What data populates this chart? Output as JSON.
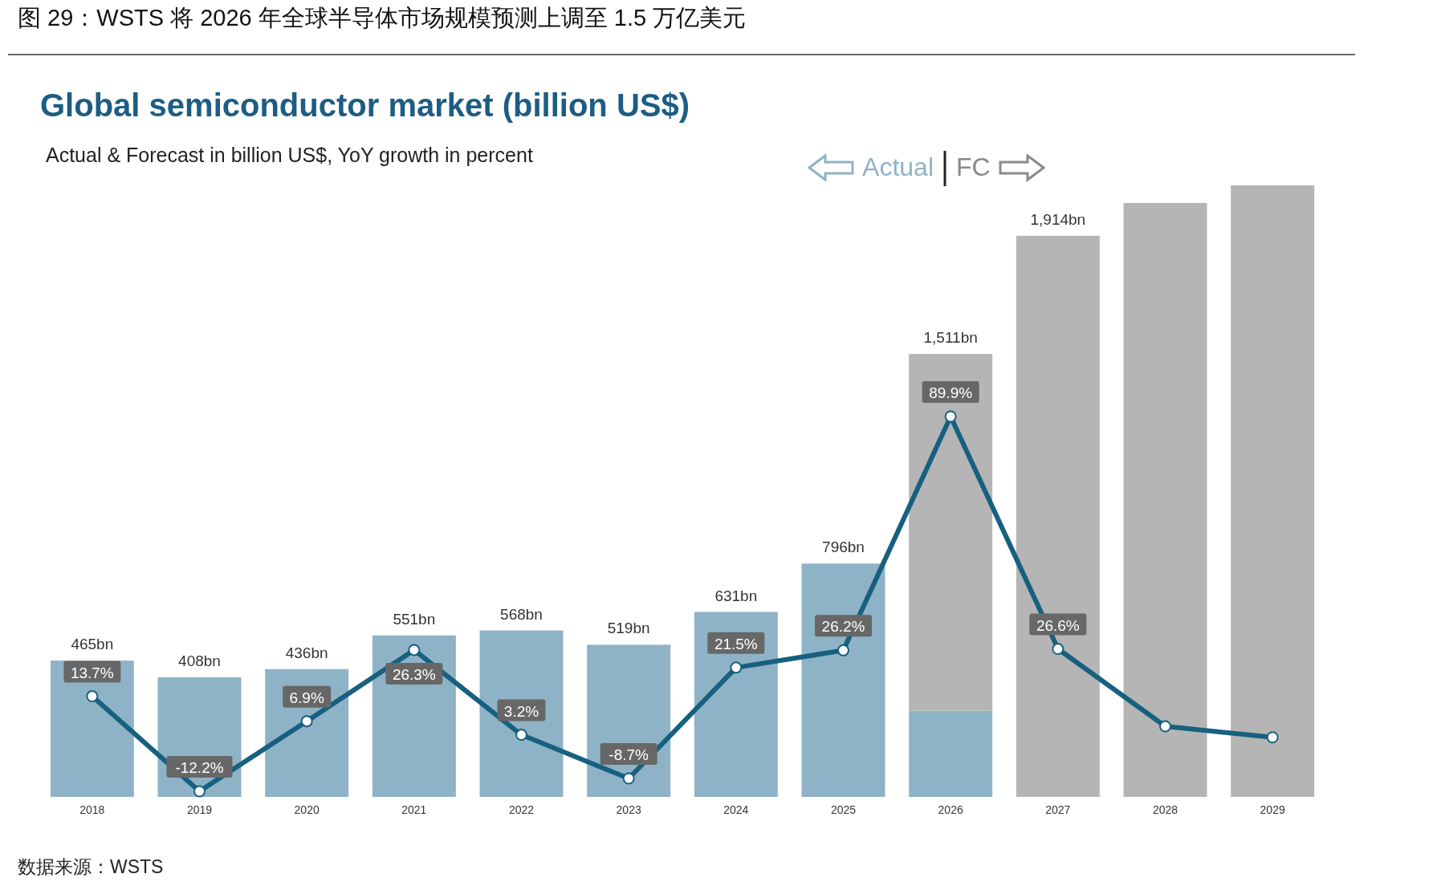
{
  "chart_data": {
    "type": "bar",
    "title": "Global semiconductor market (billion US$)",
    "subtitle": "Actual & Forecast in billion US$, YoY growth in percent",
    "categories": [
      "2018",
      "2019",
      "2020",
      "2021",
      "2022",
      "2023",
      "2024",
      "2025",
      "2026",
      "2027",
      "2028",
      "2029"
    ],
    "stacked": true,
    "series": [
      {
        "color": "#8fb3c6",
        "values": [
          465,
          408,
          436,
          551,
          568,
          519,
          631,
          796,
          294,
          null,
          null,
          null
        ],
        "value_labels": [
          "465bn",
          "408bn",
          "436bn",
          "551bn",
          "568bn",
          "519bn",
          "631bn",
          "796bn",
          null,
          null,
          null,
          null
        ]
      },
      {
        "color": "#b5b5b5",
        "values": [
          null,
          null,
          null,
          null,
          null,
          null,
          null,
          null,
          1217,
          1914,
          2026,
          2086
        ],
        "value_labels": [
          null,
          null,
          null,
          null,
          null,
          null,
          null,
          null,
          null,
          "1,914bn",
          null,
          null
        ]
      },
      {
        "type": "line",
        "axis": "y2",
        "color": "#17607f",
        "marker": "circle",
        "values": [
          13.7,
          -12.2,
          6.9,
          26.3,
          3.2,
          -8.7,
          21.5,
          26.2,
          89.9,
          26.6,
          5.5,
          2.5
        ],
        "value_labels": [
          "13.7%",
          "-12.2%",
          "6.9%",
          "26.3%",
          "3.2%",
          "-8.7%",
          "21.5%",
          "26.2%",
          "89.9%",
          "26.6%",
          null,
          null
        ]
      }
    ],
    "totals": [
      null,
      null,
      null,
      null,
      null,
      null,
      null,
      null,
      "1,511bn",
      null,
      null,
      null
    ],
    "tick_labels": "x",
    "annotations": [
      "图 29：WSTS 将 2026 年全球半导体市场规模预测上调至 1.5 万亿美元",
      "Actual",
      "FC",
      "数据来源：WSTS"
    ]
  }
}
